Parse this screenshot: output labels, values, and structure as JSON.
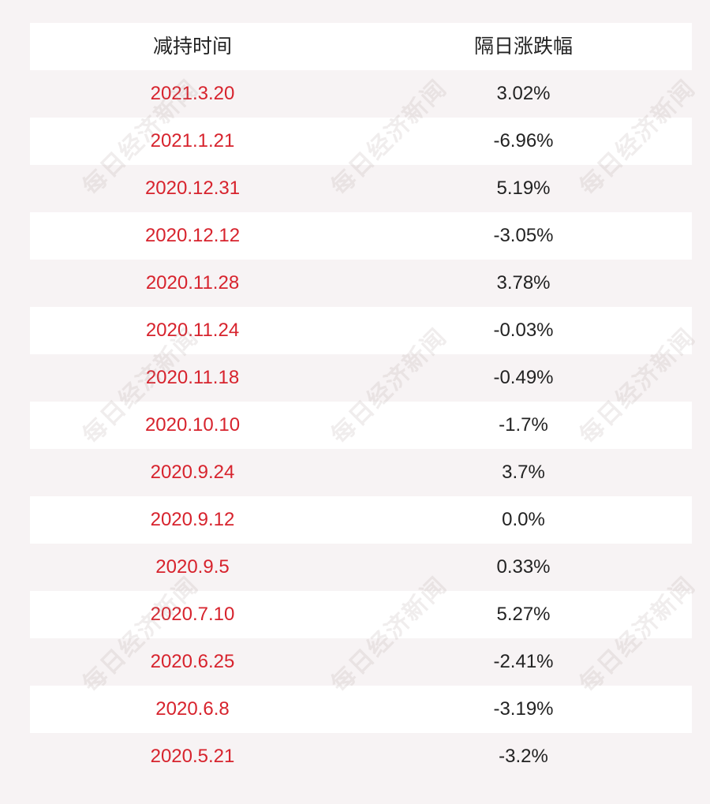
{
  "header": {
    "col_date": "减持时间",
    "col_change": "隔日涨跌幅"
  },
  "rows": [
    {
      "date": "2021.3.20",
      "change": "3.02%"
    },
    {
      "date": "2021.1.21",
      "change": "-6.96%"
    },
    {
      "date": "2020.12.31",
      "change": "5.19%"
    },
    {
      "date": "2020.12.12",
      "change": "-3.05%"
    },
    {
      "date": "2020.11.28",
      "change": "3.78%"
    },
    {
      "date": "2020.11.24",
      "change": "-0.03%"
    },
    {
      "date": "2020.11.18",
      "change": "-0.49%"
    },
    {
      "date": "2020.10.10",
      "change": "-1.7%"
    },
    {
      "date": "2020.9.24",
      "change": "3.7%"
    },
    {
      "date": "2020.9.12",
      "change": "0.0%"
    },
    {
      "date": "2020.9.5",
      "change": "0.33%"
    },
    {
      "date": "2020.7.10",
      "change": "5.27%"
    },
    {
      "date": "2020.6.25",
      "change": "-2.41%"
    },
    {
      "date": "2020.6.8",
      "change": "-3.19%"
    },
    {
      "date": "2020.5.21",
      "change": "-3.2%"
    }
  ],
  "watermark": {
    "text": "每日经济新闻"
  },
  "colors": {
    "date_text": "#d7232d",
    "value_text": "#222222",
    "background": "#f7f3f4",
    "row_white": "#ffffff"
  }
}
